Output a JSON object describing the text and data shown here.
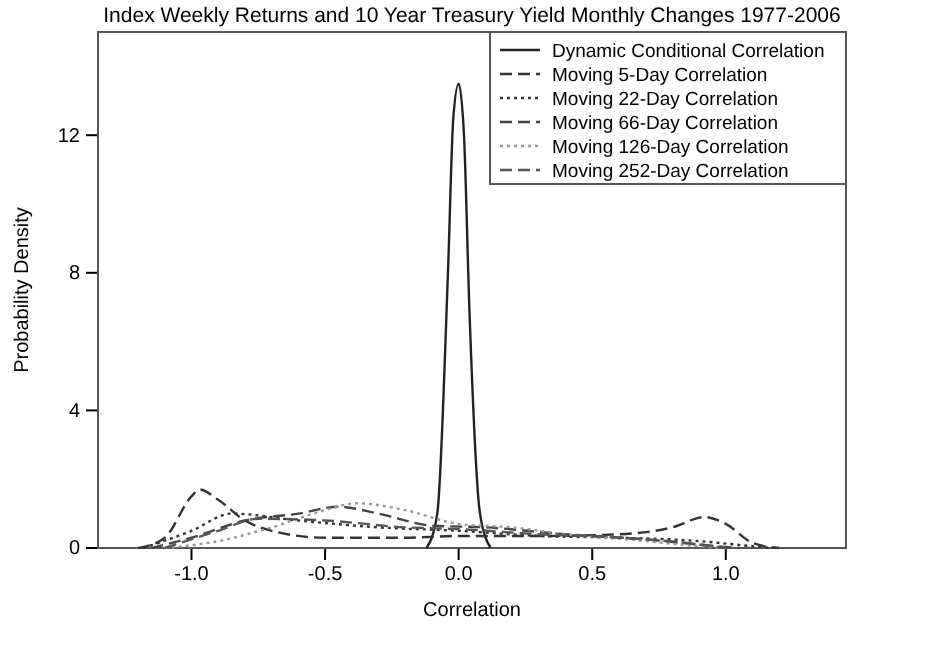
{
  "chart_data": {
    "type": "line",
    "title": "Index Weekly Returns and 10 Year Treasury Yield Monthly Changes 1977-2006",
    "xlabel": "Correlation",
    "ylabel": "Probability Density",
    "xlim": [
      -1.35,
      1.45
    ],
    "xticks": [
      {
        "value": -1,
        "label": "-1.0"
      },
      {
        "value": -0.5,
        "label": "-0.5"
      },
      {
        "value": 0,
        "label": "0.0"
      },
      {
        "value": 0.5,
        "label": "0.5"
      },
      {
        "value": 1,
        "label": "1.0"
      }
    ],
    "ylim": [
      0,
      15
    ],
    "yticks": [
      0,
      4,
      8,
      12
    ],
    "legend": "top right",
    "grid": false,
    "marker": "none",
    "series": [
      {
        "name": "Dynamic Conditional Correlation",
        "color": "#222222",
        "line_style": "solid",
        "x": [
          -0.12,
          -0.08,
          -0.04,
          -0.02,
          0,
          0.02,
          0.04,
          0.08,
          0.12
        ],
        "values": [
          0,
          1,
          8,
          12.5,
          13.5,
          12,
          7,
          1,
          0
        ]
      },
      {
        "name": "Moving 5-Day Correlation",
        "color": "#333333",
        "line_style": "dashed",
        "x": [
          -1.2,
          -1.1,
          -1.0,
          -0.97,
          -0.9,
          -0.8,
          -0.7,
          -0.5,
          -0.2,
          0,
          0.3,
          0.6,
          0.8,
          0.92,
          1.0,
          1.1,
          1.2
        ],
        "values": [
          0,
          0.3,
          1.5,
          1.7,
          1.4,
          0.8,
          0.5,
          0.3,
          0.3,
          0.35,
          0.35,
          0.4,
          0.6,
          0.9,
          0.7,
          0.15,
          0
        ]
      },
      {
        "name": "Moving 22-Day Correlation",
        "color": "#333333",
        "line_style": "dotted",
        "x": [
          -1.18,
          -1.0,
          -0.85,
          -0.6,
          -0.3,
          0,
          0.3,
          0.6,
          0.9,
          1.1,
          1.17
        ],
        "values": [
          0,
          0.5,
          1.0,
          0.8,
          0.6,
          0.5,
          0.35,
          0.3,
          0.2,
          0.05,
          0
        ]
      },
      {
        "name": "Moving 66-Day Correlation",
        "color": "#444444",
        "line_style": "dashed",
        "x": [
          -1.15,
          -1.0,
          -0.8,
          -0.6,
          -0.45,
          -0.3,
          -0.1,
          0.1,
          0.4,
          0.7,
          0.9,
          1.05
        ],
        "values": [
          0,
          0.3,
          0.8,
          1.0,
          1.2,
          1.0,
          0.65,
          0.6,
          0.4,
          0.25,
          0.1,
          0
        ]
      },
      {
        "name": "Moving 126-Day Correlation",
        "color": "#999999",
        "line_style": "dotted",
        "x": [
          -1.1,
          -0.9,
          -0.7,
          -0.5,
          -0.38,
          -0.2,
          0,
          0.2,
          0.4,
          0.7,
          0.9,
          1.0
        ],
        "values": [
          0,
          0.2,
          0.6,
          1.1,
          1.3,
          1.1,
          0.7,
          0.6,
          0.4,
          0.2,
          0.05,
          0
        ]
      },
      {
        "name": "Moving 252-Day Correlation",
        "color": "#555555",
        "line_style": "dashed",
        "x": [
          -1.1,
          -0.9,
          -0.75,
          -0.5,
          -0.2,
          0,
          0.3,
          0.6,
          0.85,
          1.0
        ],
        "values": [
          0,
          0.5,
          0.85,
          0.8,
          0.6,
          0.55,
          0.4,
          0.3,
          0.15,
          0
        ]
      }
    ]
  }
}
